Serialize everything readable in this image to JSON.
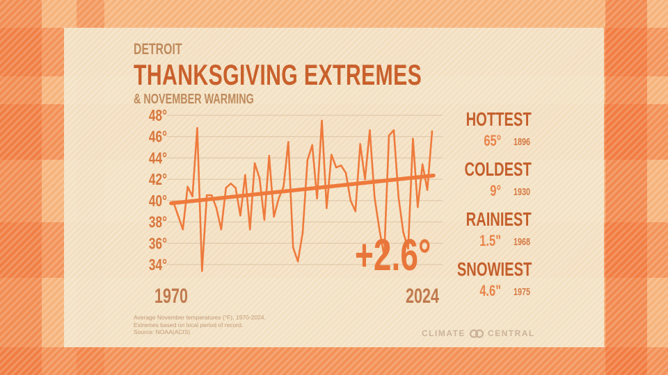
{
  "header": {
    "city": "DETROIT",
    "title": "THANKSGIVING EXTREMES",
    "subtitle": "& NOVEMBER WARMING"
  },
  "extremes": [
    {
      "label": "HOTTEST",
      "value": "65°",
      "year": "1896"
    },
    {
      "label": "COLDEST",
      "value": "9°",
      "year": "1930"
    },
    {
      "label": "RAINIEST",
      "value": "1.5\"",
      "year": "1968"
    },
    {
      "label": "SNOWIEST",
      "value": "4.6\"",
      "year": "1975"
    }
  ],
  "footnote": [
    "Average November temperatures (°F), 1970-2024.",
    "Extremes based on local period of record.",
    "Source: NOAA(ACIS)"
  ],
  "logo": {
    "left": "CLIMATE",
    "right": "CENTRAL"
  },
  "colors": {
    "line": "#ee7a3c",
    "trend": "#ee7a3c",
    "tick": "#d8763c"
  },
  "chart_data": {
    "type": "line",
    "title": "Thanksgiving Extremes & November Warming",
    "xlabel": "",
    "ylabel": "Average November temperature (°F)",
    "x_start": 1970,
    "x_end": 2024,
    "x_tick_labels": [
      "1970",
      "2024"
    ],
    "y_ticks": [
      34,
      36,
      38,
      40,
      42,
      44,
      46,
      48
    ],
    "y_tick_labels": [
      "34°",
      "36°",
      "38°",
      "40°",
      "42°",
      "44°",
      "46°",
      "48°"
    ],
    "ylim": [
      34,
      48
    ],
    "grid": true,
    "annotation": "+2.6°",
    "series": [
      {
        "name": "Average November temperature",
        "values": [
          39.9,
          38.6,
          37.3,
          41.3,
          40.4,
          46.8,
          33.4,
          40.5,
          40.5,
          39.3,
          37.3,
          41.2,
          41.6,
          41.2,
          38.6,
          42.4,
          37.3,
          43.5,
          42.1,
          38.2,
          44.2,
          38.5,
          40.2,
          41.3,
          45.5,
          35.6,
          34.3,
          37.0,
          43.8,
          45.2,
          40.2,
          47.5,
          39.3,
          44.3,
          43.1,
          43.3,
          42.6,
          40.0,
          39.0,
          45.3,
          42.0,
          46.6,
          40.3,
          37.3,
          34.8,
          46.1,
          46.6,
          40.3,
          37.0,
          35.5,
          45.8,
          39.4,
          43.4,
          41.0,
          46.5
        ]
      },
      {
        "name": "Trend",
        "values_endpoints": [
          39.75,
          42.35
        ]
      }
    ]
  }
}
